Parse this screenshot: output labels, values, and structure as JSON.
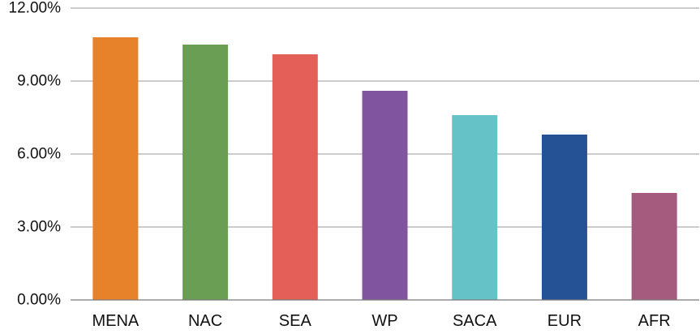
{
  "chart_data": {
    "type": "bar",
    "title": "",
    "xlabel": "",
    "ylabel": "",
    "categories": [
      "MENA",
      "NAC",
      "SEA",
      "WP",
      "SACA",
      "EUR",
      "AFR"
    ],
    "values": [
      10.8,
      10.5,
      10.1,
      8.6,
      7.6,
      6.8,
      4.4
    ],
    "value_unit": "percent",
    "colors": [
      "#e8822a",
      "#6a9e55",
      "#e35f57",
      "#8154a0",
      "#65c3c8",
      "#245295",
      "#a45b7e"
    ],
    "ylim": [
      0,
      12
    ],
    "yticks": [
      0,
      3,
      6,
      9,
      12
    ],
    "ytick_labels": [
      "0.00%",
      "3.00%",
      "6.00%",
      "9.00%",
      "12.00%"
    ],
    "grid": true,
    "legend": "none"
  }
}
